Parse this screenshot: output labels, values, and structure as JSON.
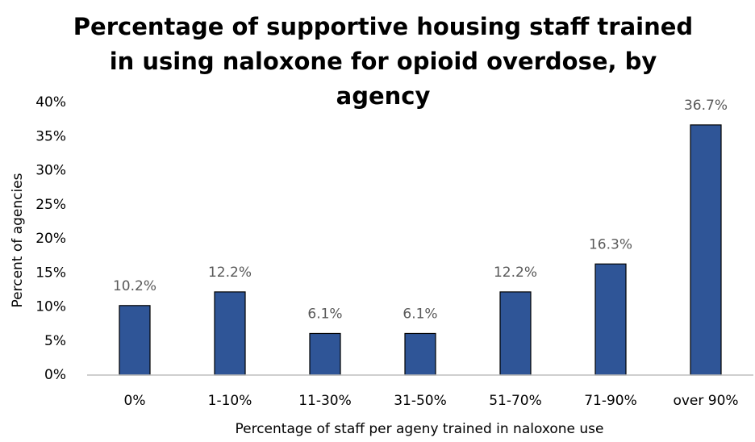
{
  "chart_data": {
    "type": "bar",
    "title": "Percentage of supportive housing staff trained in using naloxone for opioid overdose, by agency",
    "x_label": "Percentage of staff per ageny trained in naloxone use",
    "y_label": "Percent of  agencies",
    "categories": [
      "0%",
      "1-10%",
      "11-30%",
      "31-50%",
      "51-70%",
      "71-90%",
      "over 90%"
    ],
    "values": [
      10.2,
      12.2,
      6.1,
      6.1,
      12.2,
      16.3,
      36.7
    ],
    "value_labels": [
      "10.2%",
      "12.2%",
      "6.1%",
      "6.1%",
      "12.2%",
      "16.3%",
      "36.7%"
    ],
    "color": "#2f5597",
    "ylim": [
      0,
      40
    ],
    "yticks": [
      {
        "value": 0,
        "label": "0%"
      },
      {
        "value": 5,
        "label": "5%"
      },
      {
        "value": 10,
        "label": "10%"
      },
      {
        "value": 15,
        "label": "15%"
      },
      {
        "value": 20,
        "label": "20%"
      },
      {
        "value": 25,
        "label": "25%"
      },
      {
        "value": 30,
        "label": "30%"
      },
      {
        "value": 35,
        "label": "35%"
      },
      {
        "value": 40,
        "label": "40%"
      }
    ],
    "grid": false
  }
}
